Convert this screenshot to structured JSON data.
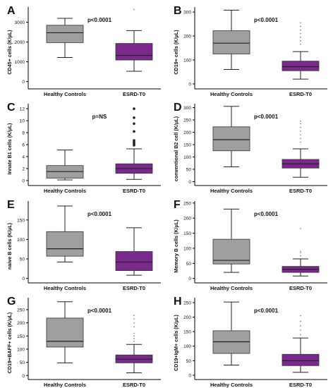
{
  "colors": {
    "control_box": "#a09e9e",
    "esrd_box": "#7a2a8c",
    "axis": "#000000",
    "text": "#111111"
  },
  "chart_data": [
    {
      "type": "box",
      "panel": "A",
      "ylabel": "CD45+ cells (K/μL)",
      "annotation": "p<0.0001",
      "categories": [
        "Healthy Controls",
        "ESRD-T0"
      ],
      "yticks": [
        0,
        1000,
        2000,
        3000
      ],
      "ylim": [
        -300,
        3700
      ],
      "boxes": [
        {
          "whisker_low": 1220,
          "q1": 1970,
          "median": 2470,
          "q3": 2850,
          "whisker_high": 3200,
          "outliers": []
        },
        {
          "whisker_low": 520,
          "q1": 1090,
          "median": 1320,
          "q3": 1930,
          "whisker_high": 2580,
          "outliers": [
            3650
          ]
        }
      ]
    },
    {
      "type": "box",
      "panel": "B",
      "ylabel": "CD19+ cells (K/μL)",
      "annotation": "p<0.0001",
      "categories": [
        "Healthy Controls",
        "ESRD-T0"
      ],
      "yticks": [
        0,
        100,
        200,
        300
      ],
      "ylim": [
        -15,
        315
      ],
      "boxes": [
        {
          "whisker_low": 60,
          "q1": 125,
          "median": 170,
          "q3": 222,
          "whisker_high": 308,
          "outliers": []
        },
        {
          "whisker_low": 20,
          "q1": 55,
          "median": 72,
          "q3": 95,
          "whisker_high": 135,
          "outliers": [
            165,
            180,
            195,
            210,
            225,
            240,
            255
          ]
        }
      ]
    },
    {
      "type": "box",
      "panel": "C",
      "ylabel": "Innate B1 cells (K/μL)",
      "annotation": "p=NS",
      "categories": [
        "Healthy Controls",
        "ESRD-T0"
      ],
      "yticks": [
        0,
        2,
        4,
        6,
        8,
        10,
        12
      ],
      "ylim": [
        -0.6,
        12.6
      ],
      "boxes": [
        {
          "whisker_low": 0.1,
          "q1": 0.4,
          "median": 1.5,
          "q3": 2.5,
          "whisker_high": 5.1,
          "outliers": []
        },
        {
          "whisker_low": 0.2,
          "q1": 1.2,
          "median": 2.0,
          "q3": 2.8,
          "whisker_high": 5.3,
          "outliers": [
            5.9,
            6.1,
            6.3,
            6.5,
            6.7,
            8.2,
            9.5,
            10.5,
            12.0
          ]
        }
      ]
    },
    {
      "type": "box",
      "panel": "D",
      "ylabel": "conventional B2 cell (K/μL)",
      "annotation": "p<0.0001",
      "categories": [
        "Healthy Controls",
        "ESRD-T0"
      ],
      "yticks": [
        0,
        50,
        100,
        150,
        200,
        250,
        300
      ],
      "ylim": [
        -10,
        310
      ],
      "boxes": [
        {
          "whisker_low": 60,
          "q1": 125,
          "median": 170,
          "q3": 222,
          "whisker_high": 305,
          "outliers": []
        },
        {
          "whisker_low": 18,
          "q1": 55,
          "median": 72,
          "q3": 90,
          "whisker_high": 133,
          "outliers": [
            160,
            175,
            190,
            205,
            220,
            235,
            245
          ]
        }
      ]
    },
    {
      "type": "box",
      "panel": "E",
      "ylabel": "naive B cells (K/μL)",
      "annotation": "p<0.0001",
      "categories": [
        "Healthy Controls",
        "ESRD-T0"
      ],
      "yticks": [
        0,
        50,
        100,
        150
      ],
      "ylim": [
        -8,
        195
      ],
      "boxes": [
        {
          "whisker_low": 42,
          "q1": 57,
          "median": 76,
          "q3": 120,
          "whisker_high": 186,
          "outliers": []
        },
        {
          "whisker_low": 8,
          "q1": 20,
          "median": 42,
          "q3": 69,
          "whisker_high": 130,
          "outliers": []
        }
      ]
    },
    {
      "type": "box",
      "panel": "F",
      "ylabel": "Memory B cells (K/μL)",
      "annotation": "p<0.0001",
      "categories": [
        "Healthy Controls",
        "ESRD-T0"
      ],
      "yticks": [
        0,
        50,
        100,
        150,
        200,
        250
      ],
      "ylim": [
        -10,
        252
      ],
      "boxes": [
        {
          "whisker_low": 20,
          "q1": 48,
          "median": 60,
          "q3": 130,
          "whisker_high": 230,
          "outliers": []
        },
        {
          "whisker_low": 8,
          "q1": 20,
          "median": 30,
          "q3": 40,
          "whisker_high": 65,
          "outliers": [
            75,
            85,
            90,
            165
          ]
        }
      ]
    },
    {
      "type": "box",
      "panel": "G",
      "ylabel": "CD19+BAFF+ cells (K/μL)",
      "annotation": "p<0.0001",
      "categories": [
        "Healthy Controls",
        "ESRD-T0"
      ],
      "yticks": [
        0,
        50,
        100,
        150,
        200,
        250
      ],
      "ylim": [
        -10,
        290
      ],
      "boxes": [
        {
          "whisker_low": 48,
          "q1": 108,
          "median": 130,
          "q3": 218,
          "whisker_high": 280,
          "outliers": []
        },
        {
          "whisker_low": 10,
          "q1": 48,
          "median": 62,
          "q3": 78,
          "whisker_high": 118,
          "outliers": [
            130,
            140,
            150,
            160,
            185,
            200,
            215,
            228
          ]
        }
      ]
    },
    {
      "type": "box",
      "panel": "H",
      "ylabel": "CD19+IgM+ cells (K/μL)",
      "annotation": "p<0.0001",
      "categories": [
        "Healthy Controls",
        "ESRD-T0"
      ],
      "yticks": [
        0,
        50,
        100,
        150,
        200,
        250
      ],
      "ylim": [
        -10,
        262
      ],
      "boxes": [
        {
          "whisker_low": 35,
          "q1": 75,
          "median": 115,
          "q3": 153,
          "whisker_high": 252,
          "outliers": []
        },
        {
          "whisker_low": 10,
          "q1": 33,
          "median": 50,
          "q3": 72,
          "whisker_high": 128,
          "outliers": [
            140,
            155,
            170,
            185,
            205
          ]
        }
      ]
    }
  ]
}
